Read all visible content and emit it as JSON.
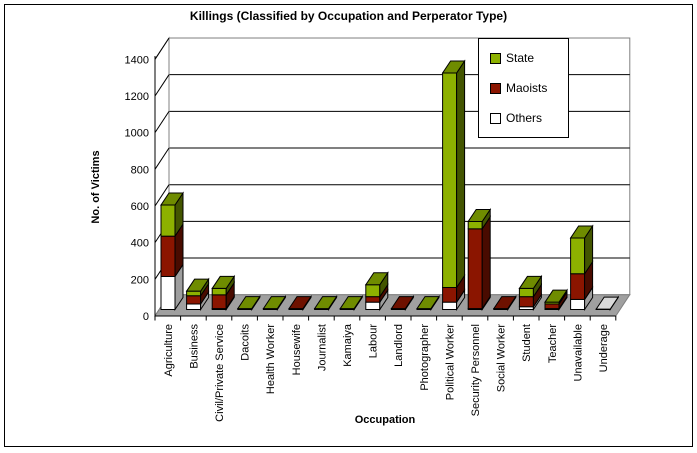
{
  "window": {
    "background": "#FFFFFF",
    "frame_border": "#000000"
  },
  "chart_data": {
    "type": "bar",
    "subtype": "3d-stacked-column",
    "title": "Killings (Classified by Occupation and Perperator Type)",
    "xlabel": "Occupation",
    "ylabel": "No. of Victims",
    "ylim": [
      0,
      1400
    ],
    "ytick_step": 200,
    "yticks": [
      0,
      200,
      400,
      600,
      800,
      1000,
      1200,
      1400
    ],
    "grid": true,
    "legend_position": "inside-top-right",
    "categories": [
      "Agriculture",
      "Business",
      "Civil/Private Service",
      "Dacoits",
      "Health Worker",
      "Housewife",
      "Journalist",
      "Kamaiya",
      "Labour",
      "Landlord",
      "Photographer",
      "Political Worker",
      "Security Personnel",
      "Social Worker",
      "Student",
      "Teacher",
      "Unavailable",
      "Underage"
    ],
    "series": [
      {
        "name": "State",
        "color": "#8DB100",
        "values": [
          170,
          25,
          35,
          5,
          5,
          0,
          5,
          5,
          65,
          0,
          5,
          1170,
          40,
          0,
          45,
          10,
          195,
          0
        ]
      },
      {
        "name": "Maoists",
        "color": "#8B1500",
        "values": [
          220,
          45,
          75,
          0,
          0,
          5,
          0,
          0,
          30,
          5,
          0,
          80,
          435,
          5,
          55,
          25,
          140,
          0
        ]
      },
      {
        "name": "Others",
        "color": "#FFFFFF",
        "values": [
          180,
          30,
          5,
          0,
          0,
          0,
          0,
          0,
          40,
          0,
          0,
          40,
          5,
          0,
          15,
          5,
          55,
          2
        ]
      }
    ],
    "stack_order_bottom_to_top": [
      "Others",
      "Maoists",
      "State"
    ]
  },
  "colors": {
    "faces": {
      "State": {
        "front": "#8DB100",
        "top": "#6F8C00",
        "side": "#435500"
      },
      "Maoists": {
        "front": "#8B1500",
        "top": "#6E1100",
        "side": "#490B00"
      },
      "Others": {
        "front": "#FFFFFF",
        "top": "#D9D9D9",
        "side": "#9E9E9E"
      }
    },
    "wall": "#FFFFFF",
    "wall_border": "#808080",
    "floor": "#A0A0A0",
    "gridline": "#000000",
    "axis": "#000000",
    "text": "#000000"
  }
}
